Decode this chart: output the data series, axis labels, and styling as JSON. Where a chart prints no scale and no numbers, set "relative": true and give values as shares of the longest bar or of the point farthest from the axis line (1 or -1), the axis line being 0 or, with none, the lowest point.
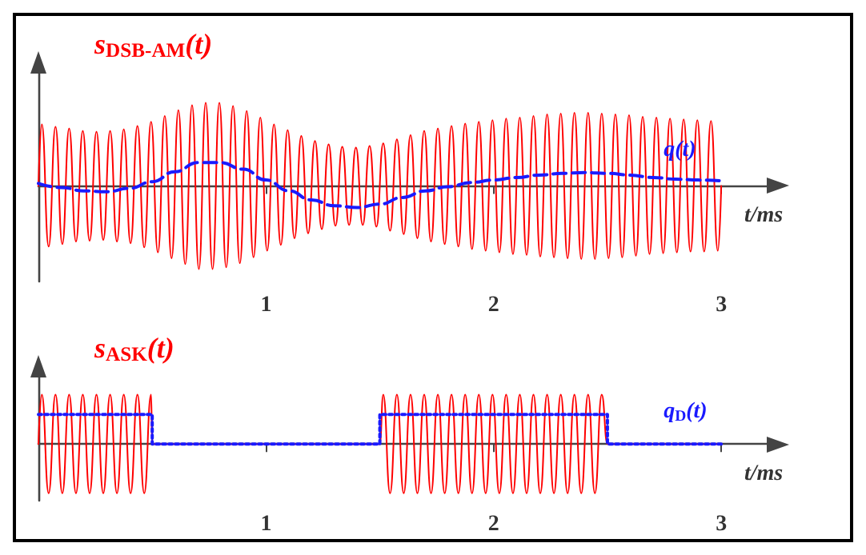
{
  "chart_data": [
    {
      "type": "line",
      "title": "s$_{DSB-AM}$(t)",
      "xlabel": "t/ms",
      "relative": true,
      "xlim": [
        0,
        3.2
      ],
      "xticks": [
        1,
        2,
        3
      ],
      "tick_labels": "x",
      "series": [
        {
          "color": "#ff0000",
          "line_style": "solid",
          "x": [
            0,
            0.015,
            0.045,
            0.075,
            0.105,
            0.135,
            0.165,
            0.195,
            0.225,
            0.255,
            0.285,
            0.315,
            0.345,
            0.375,
            0.405,
            0.435,
            0.465,
            0.495,
            0.525,
            0.555,
            0.585,
            0.615,
            0.645,
            0.675,
            0.705,
            0.735,
            0.765,
            0.795,
            0.825,
            0.855,
            0.885,
            0.915,
            0.945,
            0.975,
            1.005,
            1.035,
            1.065,
            1.095,
            1.125,
            1.155,
            1.185,
            1.215,
            1.245,
            1.275,
            1.305,
            1.335,
            1.365,
            1.395,
            1.425,
            1.455,
            1.485,
            1.515,
            1.545,
            1.575,
            1.605,
            1.635,
            1.665,
            1.695,
            1.725,
            1.755,
            1.785,
            1.815,
            1.845,
            1.875,
            1.905,
            1.935,
            1.965,
            1.995,
            2.025,
            2.055,
            2.085,
            2.115,
            2.145,
            2.175,
            2.205,
            2.235,
            2.265,
            2.295,
            2.325,
            2.355,
            2.385,
            2.415,
            2.445,
            2.475,
            2.505,
            2.535,
            2.565,
            2.595,
            2.625,
            2.655,
            2.685,
            2.715,
            2.745,
            2.775,
            2.805,
            2.835,
            2.865,
            2.895,
            2.925,
            2.955,
            2.985,
            3
          ],
          "values": [
            0,
            0.74,
            -0.73,
            0.71,
            -0.7,
            0.69,
            -0.67,
            0.66,
            -0.66,
            0.65,
            -0.65,
            0.66,
            -0.67,
            0.68,
            -0.69,
            0.72,
            -0.74,
            0.77,
            -0.8,
            0.84,
            -0.87,
            0.91,
            -0.94,
            0.97,
            -1.0,
            1.0,
            -1.0,
            1.0,
            -0.98,
            0.96,
            -0.93,
            0.9,
            -0.86,
            0.82,
            -0.78,
            0.74,
            -0.71,
            0.67,
            -0.63,
            0.6,
            -0.57,
            0.54,
            -0.52,
            0.5,
            -0.48,
            0.47,
            -0.47,
            0.46,
            -0.47,
            0.48,
            -0.49,
            0.51,
            -0.54,
            0.56,
            -0.58,
            0.61,
            -0.63,
            0.66,
            -0.67,
            0.69,
            -0.7,
            0.72,
            -0.73,
            0.75,
            -0.76,
            0.77,
            -0.78,
            0.79,
            -0.8,
            0.81,
            -0.82,
            0.82,
            -0.83,
            0.84,
            -0.85,
            0.86,
            -0.86,
            0.87,
            -0.87,
            0.88,
            -0.88,
            0.88,
            -0.88,
            0.87,
            -0.87,
            0.86,
            -0.86,
            0.85,
            -0.84,
            0.83,
            -0.82,
            0.82,
            -0.81,
            0.81,
            -0.8,
            0.8,
            -0.79,
            0.79,
            -0.79,
            0.78,
            -0.78,
            0
          ]
        },
        {
          "name": "q(t)",
          "color": "#1a1aff",
          "line_style": "dashed",
          "x": [
            0,
            0.1,
            0.2,
            0.3,
            0.4,
            0.5,
            0.6,
            0.7,
            0.8,
            0.9,
            1,
            1.1,
            1.2,
            1.3,
            1.4,
            1.5,
            1.6,
            1.7,
            1.8,
            1.9,
            2,
            2.1,
            2.2,
            2.3,
            2.4,
            2.5,
            2.6,
            2.7,
            2.8,
            2.9,
            3
          ],
          "values": [
            0.03,
            -0.02,
            -0.06,
            -0.07,
            -0.03,
            0.05,
            0.17,
            0.28,
            0.28,
            0.2,
            0.07,
            -0.06,
            -0.17,
            -0.24,
            -0.26,
            -0.22,
            -0.14,
            -0.06,
            -0.01,
            0.04,
            0.07,
            0.1,
            0.13,
            0.15,
            0.16,
            0.15,
            0.13,
            0.1,
            0.08,
            0.07,
            0.06
          ]
        }
      ]
    },
    {
      "type": "line",
      "title": "s$_{ASK}$(t)",
      "xlabel": "t/ms",
      "relative": true,
      "xlim": [
        0,
        3.2
      ],
      "xticks": [
        1,
        2,
        3
      ],
      "tick_labels": "x",
      "series": [
        {
          "color": "#ff0000",
          "line_style": "solid",
          "x": [
            0,
            0.015,
            0.045,
            0.075,
            0.105,
            0.135,
            0.165,
            0.195,
            0.225,
            0.255,
            0.285,
            0.315,
            0.345,
            0.375,
            0.405,
            0.435,
            0.465,
            0.495,
            0.5,
            1.5,
            1.515,
            1.545,
            1.575,
            1.605,
            1.635,
            1.665,
            1.695,
            1.725,
            1.755,
            1.785,
            1.815,
            1.845,
            1.875,
            1.905,
            1.935,
            1.965,
            1.995,
            2.025,
            2.055,
            2.085,
            2.115,
            2.145,
            2.175,
            2.205,
            2.235,
            2.265,
            2.295,
            2.325,
            2.355,
            2.385,
            2.415,
            2.445,
            2.475,
            2.5,
            3
          ],
          "values": [
            0,
            1,
            -1,
            1,
            -1,
            1,
            -1,
            1,
            -1,
            1,
            -1,
            1,
            -1,
            1,
            -1,
            1,
            -1,
            1,
            0,
            0,
            1,
            -1,
            1,
            -1,
            1,
            -1,
            1,
            -1,
            1,
            -1,
            1,
            -1,
            1,
            -1,
            1,
            -1,
            1,
            -1,
            1,
            -1,
            1,
            -1,
            1,
            -1,
            1,
            -1,
            1,
            -1,
            1,
            -1,
            1,
            -1,
            1,
            0,
            0
          ]
        },
        {
          "name": "q$_{D}$(t)",
          "color": "#1a1aff",
          "line_style": "dotted",
          "x": [
            0,
            0.5,
            0.5,
            1.5,
            1.5,
            2.5,
            2.5,
            3
          ],
          "values": [
            0.6,
            0.6,
            0,
            0,
            0.6,
            0.6,
            0,
            0
          ]
        }
      ]
    }
  ]
}
